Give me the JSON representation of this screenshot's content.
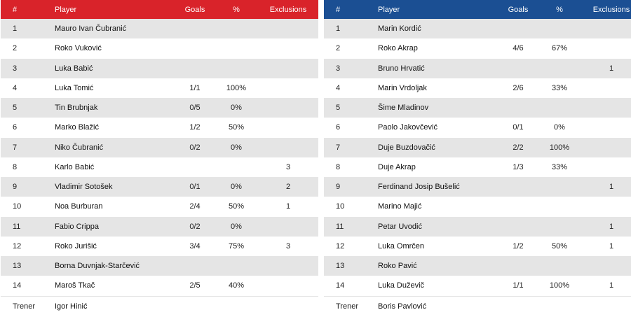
{
  "columns": {
    "num": "#",
    "player": "Player",
    "goals": "Goals",
    "pct": "%",
    "excl": "Exclusions"
  },
  "colors": {
    "home_header": "#d9232a",
    "away_header": "#1b4f93",
    "stripe": "#e5e5e5"
  },
  "home": {
    "players": [
      {
        "num": "1",
        "name": "Mauro Ivan Čubranić",
        "goals": "",
        "pct": "",
        "excl": ""
      },
      {
        "num": "2",
        "name": "Roko Vuković",
        "goals": "",
        "pct": "",
        "excl": ""
      },
      {
        "num": "3",
        "name": "Luka Babić",
        "goals": "",
        "pct": "",
        "excl": ""
      },
      {
        "num": "4",
        "name": "Luka Tomić",
        "goals": "1/1",
        "pct": "100%",
        "excl": ""
      },
      {
        "num": "5",
        "name": "Tin Brubnjak",
        "goals": "0/5",
        "pct": "0%",
        "excl": ""
      },
      {
        "num": "6",
        "name": "Marko Blažić",
        "goals": "1/2",
        "pct": "50%",
        "excl": ""
      },
      {
        "num": "7",
        "name": "Niko Čubranić",
        "goals": "0/2",
        "pct": "0%",
        "excl": ""
      },
      {
        "num": "8",
        "name": "Karlo Babić",
        "goals": "",
        "pct": "",
        "excl": "3"
      },
      {
        "num": "9",
        "name": "Vladimir Sotošek",
        "goals": "0/1",
        "pct": "0%",
        "excl": "2"
      },
      {
        "num": "10",
        "name": "Noa Burburan",
        "goals": "2/4",
        "pct": "50%",
        "excl": "1"
      },
      {
        "num": "11",
        "name": "Fabio Crippa",
        "goals": "0/2",
        "pct": "0%",
        "excl": ""
      },
      {
        "num": "12",
        "name": "Roko Jurišić",
        "goals": "3/4",
        "pct": "75%",
        "excl": "3"
      },
      {
        "num": "13",
        "name": "Borna Duvnjak-Starčević",
        "goals": "",
        "pct": "",
        "excl": ""
      },
      {
        "num": "14",
        "name": "Maroš Tkač",
        "goals": "2/5",
        "pct": "40%",
        "excl": ""
      }
    ],
    "coach_label": "Trener",
    "coach": "Igor Hinić"
  },
  "away": {
    "players": [
      {
        "num": "1",
        "name": "Marin Kordić",
        "goals": "",
        "pct": "",
        "excl": ""
      },
      {
        "num": "2",
        "name": "Roko Akrap",
        "goals": "4/6",
        "pct": "67%",
        "excl": ""
      },
      {
        "num": "3",
        "name": "Bruno Hrvatić",
        "goals": "",
        "pct": "",
        "excl": "1"
      },
      {
        "num": "4",
        "name": "Marin Vrdoljak",
        "goals": "2/6",
        "pct": "33%",
        "excl": ""
      },
      {
        "num": "5",
        "name": "Šime Mladinov",
        "goals": "",
        "pct": "",
        "excl": ""
      },
      {
        "num": "6",
        "name": "Paolo Jakovčević",
        "goals": "0/1",
        "pct": "0%",
        "excl": ""
      },
      {
        "num": "7",
        "name": "Duje Buzdovačić",
        "goals": "2/2",
        "pct": "100%",
        "excl": ""
      },
      {
        "num": "8",
        "name": "Duje Akrap",
        "goals": "1/3",
        "pct": "33%",
        "excl": ""
      },
      {
        "num": "9",
        "name": "Ferdinand Josip Bušelić",
        "goals": "",
        "pct": "",
        "excl": "1"
      },
      {
        "num": "10",
        "name": "Marino Majić",
        "goals": "",
        "pct": "",
        "excl": ""
      },
      {
        "num": "11",
        "name": "Petar Uvodić",
        "goals": "",
        "pct": "",
        "excl": "1"
      },
      {
        "num": "12",
        "name": "Luka Omrčen",
        "goals": "1/2",
        "pct": "50%",
        "excl": "1"
      },
      {
        "num": "13",
        "name": "Roko Pavić",
        "goals": "",
        "pct": "",
        "excl": ""
      },
      {
        "num": "14",
        "name": "Luka Duževič",
        "goals": "1/1",
        "pct": "100%",
        "excl": "1"
      }
    ],
    "coach_label": "Trener",
    "coach": "Boris Pavlović"
  }
}
